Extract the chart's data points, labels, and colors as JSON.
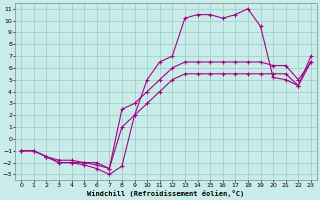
{
  "xlabel": "Windchill (Refroidissement éolien,°C)",
  "bg_color": "#c8ece8",
  "line_color": "#aa0088",
  "grid_color": "#99cccc",
  "xlim": [
    -0.5,
    23.5
  ],
  "ylim": [
    -3.5,
    11.5
  ],
  "xticks": [
    0,
    1,
    2,
    3,
    4,
    5,
    6,
    7,
    8,
    9,
    10,
    11,
    12,
    13,
    14,
    15,
    16,
    17,
    18,
    19,
    20,
    21,
    22,
    23
  ],
  "yticks": [
    -3,
    -2,
    -1,
    0,
    1,
    2,
    3,
    4,
    5,
    6,
    7,
    8,
    9,
    10,
    11
  ],
  "line1_x": [
    0,
    1,
    2,
    3,
    4,
    5,
    6,
    7,
    8,
    9,
    10,
    11,
    12,
    13,
    14,
    15,
    16,
    17,
    18,
    19,
    20,
    21,
    22,
    23
  ],
  "line1_y": [
    -1,
    -1,
    -1.5,
    -2,
    -2,
    -2.2,
    -2.5,
    -3,
    -2.3,
    2,
    5,
    6.5,
    7,
    10.2,
    10.5,
    10.5,
    10.2,
    10.5,
    11,
    9.5,
    5.2,
    5,
    4.5,
    7
  ],
  "line2_x": [
    0,
    1,
    2,
    3,
    4,
    5,
    6,
    7,
    8,
    9,
    10,
    11,
    12,
    13,
    14,
    15,
    16,
    17,
    18,
    19,
    20,
    21,
    22,
    23
  ],
  "line2_y": [
    -1,
    -1,
    -1.5,
    -1.8,
    -1.8,
    -2,
    -2,
    -2.5,
    2.5,
    3,
    4,
    5,
    6,
    6.5,
    6.5,
    6.5,
    6.5,
    6.5,
    6.5,
    6.5,
    6.2,
    6.2,
    5,
    6.5
  ],
  "line3_x": [
    0,
    1,
    2,
    3,
    4,
    5,
    6,
    7,
    8,
    9,
    10,
    11,
    12,
    13,
    14,
    15,
    16,
    17,
    18,
    19,
    20,
    21,
    22,
    23
  ],
  "line3_y": [
    -1,
    -1,
    -1.5,
    -2,
    -2,
    -2,
    -2.2,
    -2.5,
    1,
    2,
    3,
    4,
    5,
    5.5,
    5.5,
    5.5,
    5.5,
    5.5,
    5.5,
    5.5,
    5.5,
    5.5,
    4.5,
    6.5
  ]
}
